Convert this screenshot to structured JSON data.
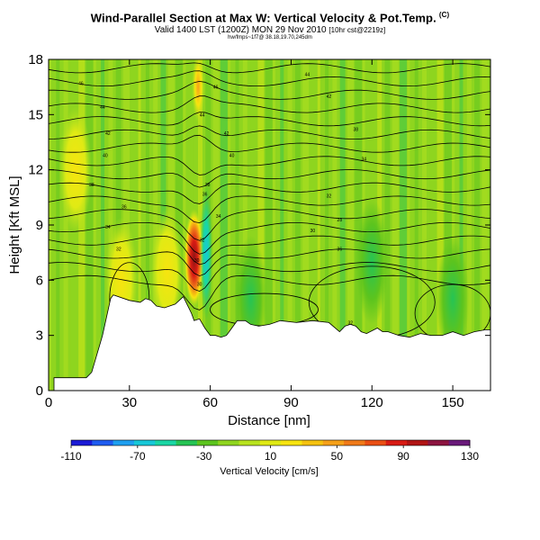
{
  "chart_data": {
    "type": "heatmap",
    "title": "Wind-Parallel Section at Max W: Vertical Velocity & Pot.Temp.",
    "title_mark": "(C)",
    "subtitle": "Valid 1400 LST (1200Z) MON 29 Nov 2010",
    "subtitle_small": "[10hr cst@2219z]",
    "subtitle2": "hw/fmps~1f7@ 38.18,19.70,245dm",
    "xlabel": "Distance [nm]",
    "ylabel": "Height [Kft MSL]",
    "xlim": [
      0,
      164
    ],
    "ylim": [
      0,
      18
    ],
    "x_ticks": [
      0,
      30,
      60,
      90,
      120,
      150
    ],
    "y_ticks": [
      0,
      3,
      6,
      9,
      12,
      15,
      18
    ],
    "colorbar": {
      "label": "Vertical Velocity [cm/s]",
      "ticks": [
        -110,
        -70,
        -30,
        10,
        50,
        90,
        130
      ],
      "range": [
        -110,
        130
      ],
      "colors": [
        "#1b1bd6",
        "#1f5cf0",
        "#1e9ff0",
        "#17c8d8",
        "#1ad6a4",
        "#26c454",
        "#5cc41e",
        "#8fd51f",
        "#b8e31e",
        "#e0ea14",
        "#f7e40f",
        "#f5c20f",
        "#f5a019",
        "#f07a19",
        "#ea4f14",
        "#d81b14",
        "#b01414",
        "#8c1440",
        "#6a1a7a"
      ]
    },
    "terrain_profile": {
      "x": [
        0,
        2,
        2,
        14,
        16,
        20,
        23,
        24,
        30,
        34,
        36,
        38,
        40,
        43,
        47,
        50,
        53,
        54,
        56,
        58,
        60,
        62,
        64,
        66,
        68,
        70,
        73,
        75,
        78,
        82,
        86,
        92,
        98,
        104,
        108,
        110,
        112,
        114,
        116,
        118,
        122,
        124,
        126,
        130,
        134,
        138,
        142,
        146,
        150,
        154,
        158,
        162,
        164
      ],
      "y": [
        0,
        0,
        0.7,
        0.7,
        1.0,
        3.0,
        5.0,
        5.2,
        4.9,
        4.8,
        5.0,
        4.9,
        4.6,
        4.5,
        4.7,
        5.1,
        4.2,
        3.8,
        3.9,
        3.4,
        3.0,
        3.0,
        2.9,
        3.0,
        3.4,
        3.8,
        3.8,
        3.6,
        3.5,
        3.6,
        3.8,
        3.7,
        3.8,
        3.7,
        3.2,
        3.5,
        3.6,
        3.5,
        3.2,
        3.1,
        3.4,
        3.2,
        3.2,
        3.0,
        2.9,
        3.1,
        3.0,
        3.0,
        3.2,
        3.0,
        3.2,
        3.3,
        3.3
      ]
    },
    "velocity_features": [
      {
        "x": 54,
        "y": 7.2,
        "value": 120
      },
      {
        "x": 55.5,
        "y": 16.5,
        "value": 75
      },
      {
        "x": 58.5,
        "y": 7.5,
        "value": -45
      },
      {
        "x": 44,
        "y": 6.5,
        "value": 45
      },
      {
        "x": 27,
        "y": 6.0,
        "value": 35
      },
      {
        "x": 10,
        "y": 12.0,
        "value": 30
      },
      {
        "x": 120,
        "y": 7.0,
        "value": -15
      },
      {
        "x": 150,
        "y": 5.0,
        "value": -15
      },
      {
        "x": 75,
        "y": 5.0,
        "value": -5
      }
    ],
    "contour_labels": [
      "46",
      "44",
      "42",
      "40",
      "38",
      "36",
      "34",
      "32",
      "30",
      "46",
      "44",
      "42",
      "40",
      "38",
      "36",
      "34",
      "32",
      "30",
      "44",
      "42",
      "38",
      "34",
      "32",
      "28",
      "30",
      "36",
      "32"
    ]
  }
}
